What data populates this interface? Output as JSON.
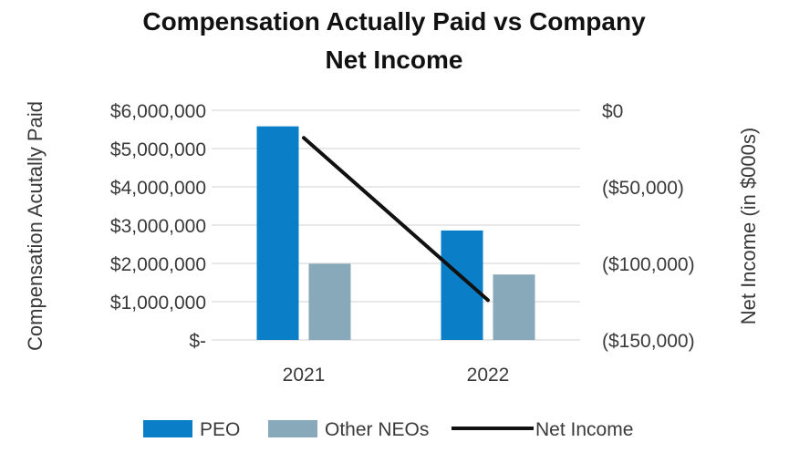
{
  "chart_data": {
    "type": "bar",
    "title_lines": [
      "Compensation Actually Paid vs Company",
      "Net Income"
    ],
    "categories": [
      "2021",
      "2022"
    ],
    "series": [
      {
        "name": "PEO",
        "kind": "bar",
        "axis": "left",
        "color": "#0A7FC8",
        "values": [
          5580000,
          2860000
        ]
      },
      {
        "name": "Other NEOs",
        "kind": "bar",
        "axis": "left",
        "color": "#88A9B9",
        "values": [
          1990000,
          1710000
        ]
      },
      {
        "name": "Net Income",
        "kind": "line",
        "axis": "right",
        "color": "#111111",
        "values": [
          -18000,
          -124000
        ]
      }
    ],
    "left_axis": {
      "label": "Compensation Acutally Paid",
      "min": 0,
      "max": 6000000,
      "ticks": [
        0,
        1000000,
        2000000,
        3000000,
        4000000,
        5000000,
        6000000
      ],
      "tick_labels": [
        "$-",
        "$1,000,000",
        "$2,000,000",
        "$3,000,000",
        "$4,000,000",
        "$5,000,000",
        "$6,000,000"
      ]
    },
    "right_axis": {
      "label": "Net Income (in $000s)",
      "min": -150000,
      "max": 0,
      "ticks": [
        0,
        -50000,
        -100000,
        -150000
      ],
      "tick_labels": [
        "$0",
        "($50,000)",
        "($100,000)",
        "($150,000)"
      ]
    },
    "grid": true,
    "grid_color": "#D9D9D9",
    "legend_position": "bottom"
  }
}
